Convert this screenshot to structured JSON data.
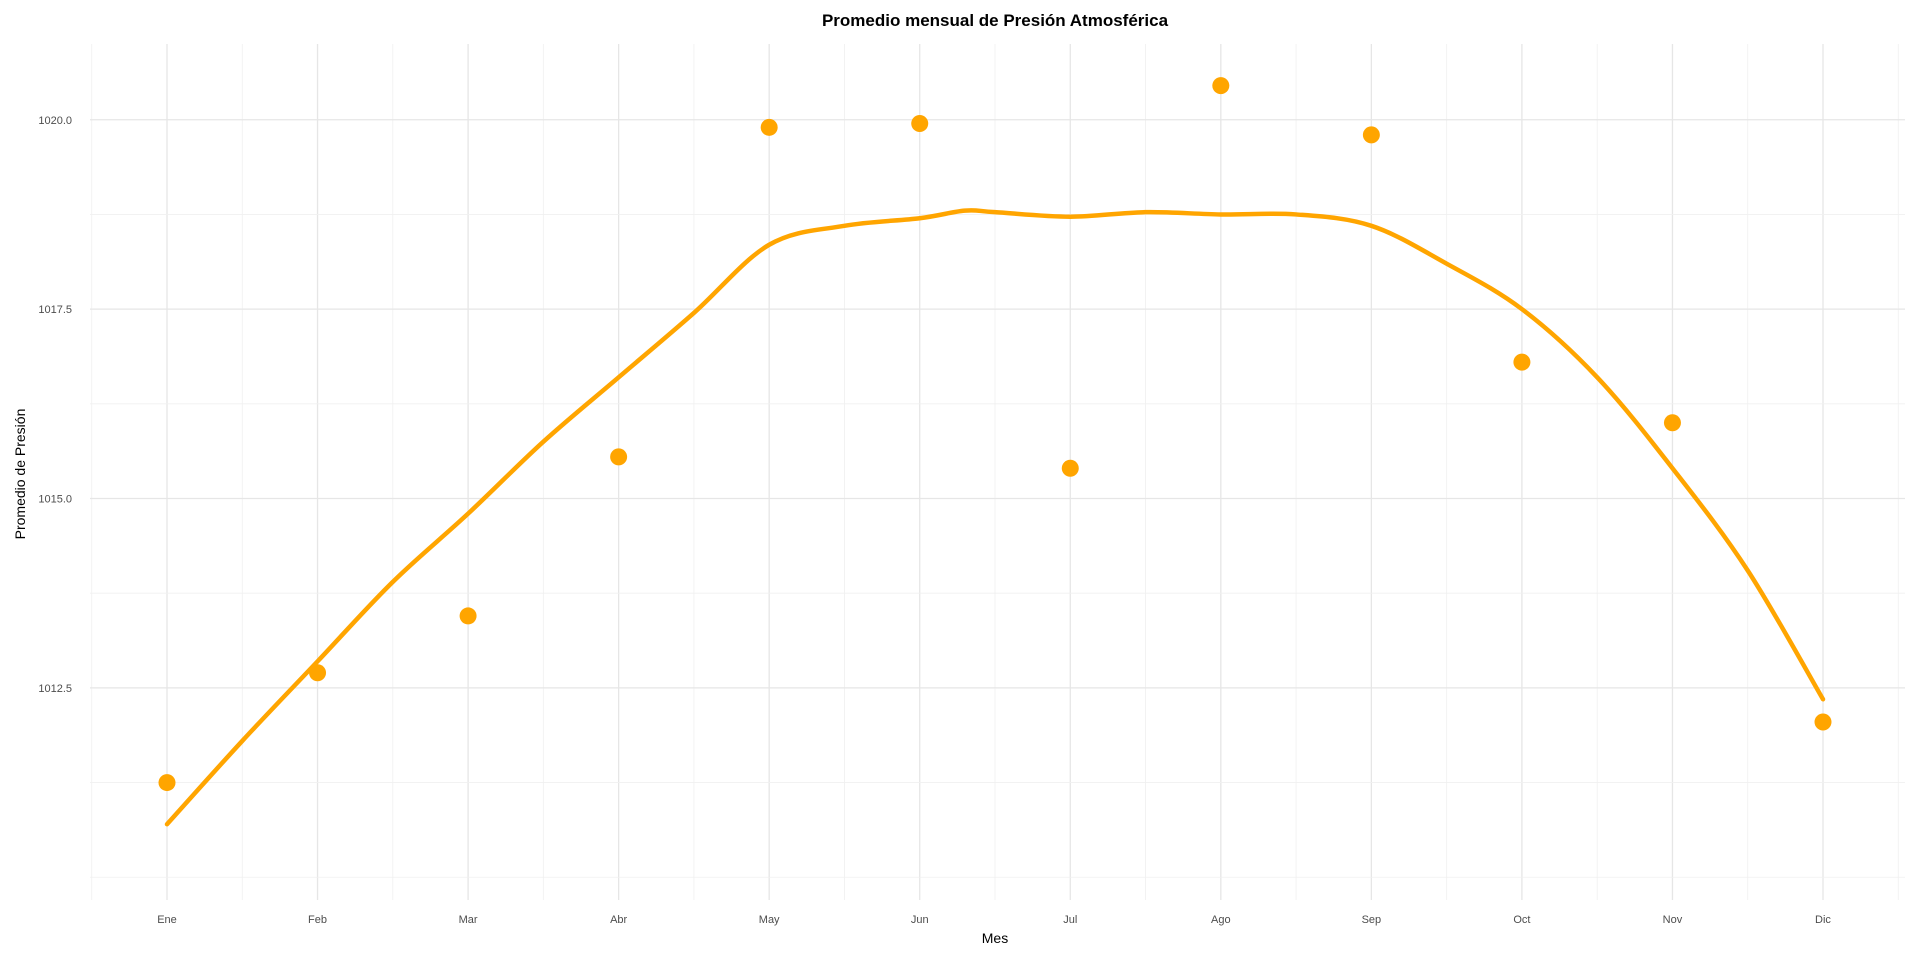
{
  "chart_data": {
    "type": "scatter",
    "title": "Promedio mensual de Presión Atmosférica",
    "xlabel": "Mes",
    "ylabel": "Promedio de Presión",
    "categories": [
      "Ene",
      "Feb",
      "Mar",
      "Abr",
      "May",
      "Jun",
      "Jul",
      "Ago",
      "Sep",
      "Oct",
      "Nov",
      "Dic"
    ],
    "yticks": [
      "1012.5",
      "1015.0",
      "1017.5",
      "1020.0"
    ],
    "ylim": [
      1009.7,
      1021.0
    ],
    "grid": true,
    "legend": "none",
    "color": "#FFA500",
    "series": [
      {
        "type": "scatter",
        "values": [
          1011.25,
          1012.7,
          1013.45,
          1015.55,
          1019.9,
          1019.95,
          1015.4,
          1020.45,
          1019.8,
          1016.8,
          1016.0,
          1012.05
        ]
      },
      {
        "type": "smooth-line",
        "x": [
          1,
          1.5,
          2,
          2.5,
          3,
          3.5,
          4,
          4.5,
          5,
          5.5,
          6,
          6.3,
          6.5,
          7,
          7.5,
          8,
          8.5,
          9,
          9.5,
          10,
          10.5,
          11,
          11.5,
          12
        ],
        "values": [
          1010.7,
          1011.8,
          1012.85,
          1013.9,
          1014.8,
          1015.75,
          1016.6,
          1017.45,
          1018.35,
          1018.6,
          1018.7,
          1018.8,
          1018.78,
          1018.72,
          1018.78,
          1018.75,
          1018.75,
          1018.6,
          1018.1,
          1017.5,
          1016.6,
          1015.4,
          1014.05,
          1012.35
        ]
      }
    ]
  }
}
